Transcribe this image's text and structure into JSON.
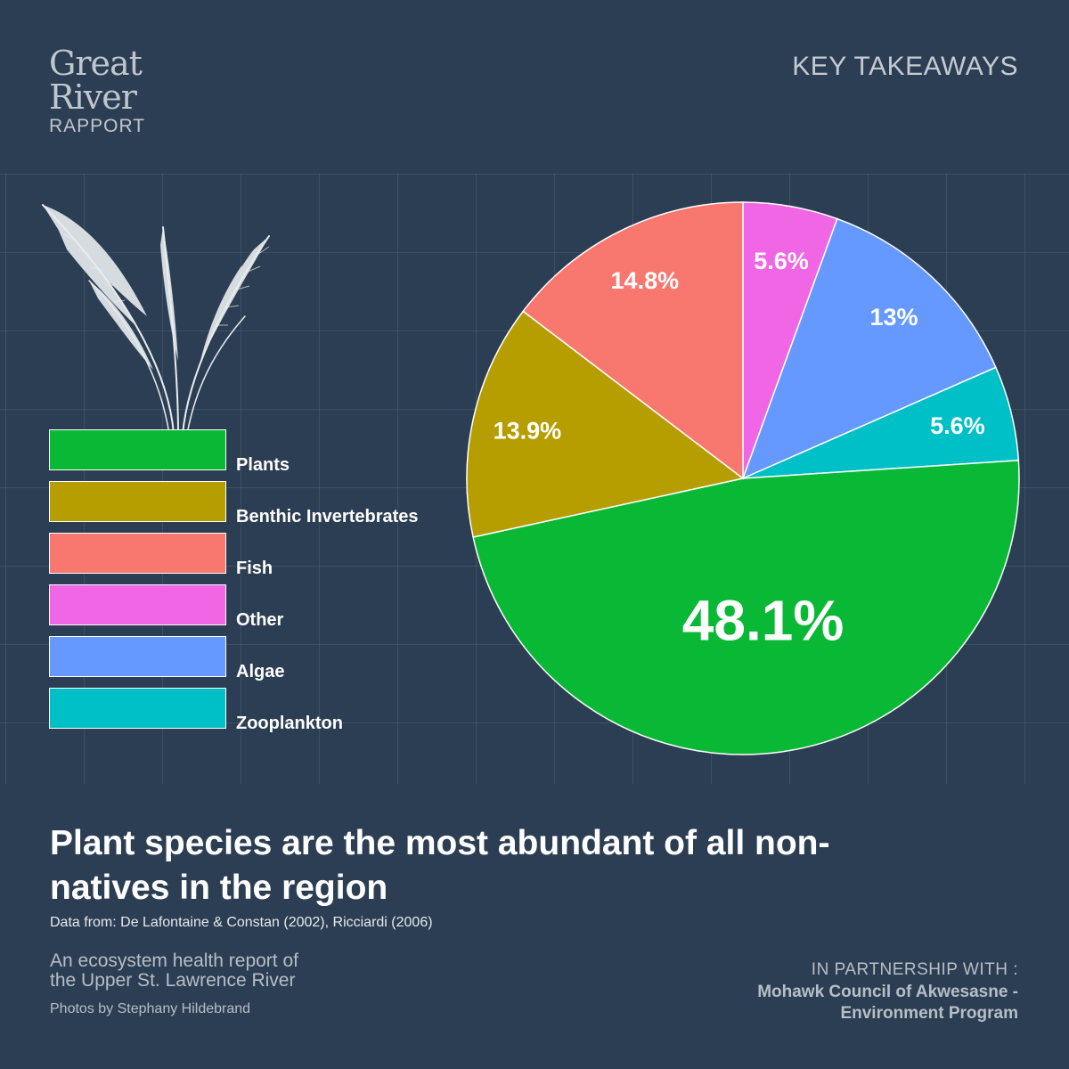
{
  "brand": {
    "line1": "Great",
    "line2": "River",
    "line3": "RAPPORT"
  },
  "header": {
    "key_takeaways": "KEY TAKEAWAYS"
  },
  "chart_data": {
    "type": "pie",
    "title": "Plant species are the most abundant of all non-natives in the region",
    "slices": [
      {
        "name": "Other",
        "value": 5.6,
        "label": "5.6%",
        "color": "#f066e4"
      },
      {
        "name": "Algae",
        "value": 13.0,
        "label": "13%",
        "color": "#6699ff"
      },
      {
        "name": "Zooplankton",
        "value": 5.6,
        "label": "5.6%",
        "color": "#00c0c7"
      },
      {
        "name": "Plants",
        "value": 48.1,
        "label": "48.1%",
        "color": "#09b936"
      },
      {
        "name": "Benthic Invertebrates",
        "value": 13.9,
        "label": "13.9%",
        "color": "#b79e00"
      },
      {
        "name": "Fish",
        "value": 14.8,
        "label": "14.8%",
        "color": "#f8786f"
      }
    ],
    "legend": [
      {
        "name": "Plants",
        "color": "#09b936"
      },
      {
        "name": "Benthic Invertebrates",
        "color": "#b79e00"
      },
      {
        "name": "Fish",
        "color": "#f8786f"
      },
      {
        "name": "Other",
        "color": "#f066e4"
      },
      {
        "name": "Algae",
        "color": "#6699ff"
      },
      {
        "name": "Zooplankton",
        "color": "#00c0c7"
      }
    ],
    "legend_position": "left"
  },
  "footer": {
    "headline": "Plant species are the most abundant of all non-natives in the region",
    "source": "Data from: De Lafontaine & Constan (2002), Ricciardi (2006)",
    "report_line1": "An ecosystem health report of",
    "report_line2": "the Upper St. Lawrence River",
    "photos": "Photos by Stephany Hildebrand",
    "partner_label": "IN PARTNERSHIP WITH :",
    "partner_org_line1": "Mohawk Council of Akwesasne -",
    "partner_org_line2": "Environment Program"
  },
  "icons": {
    "reed": "reed-grass-icon"
  }
}
